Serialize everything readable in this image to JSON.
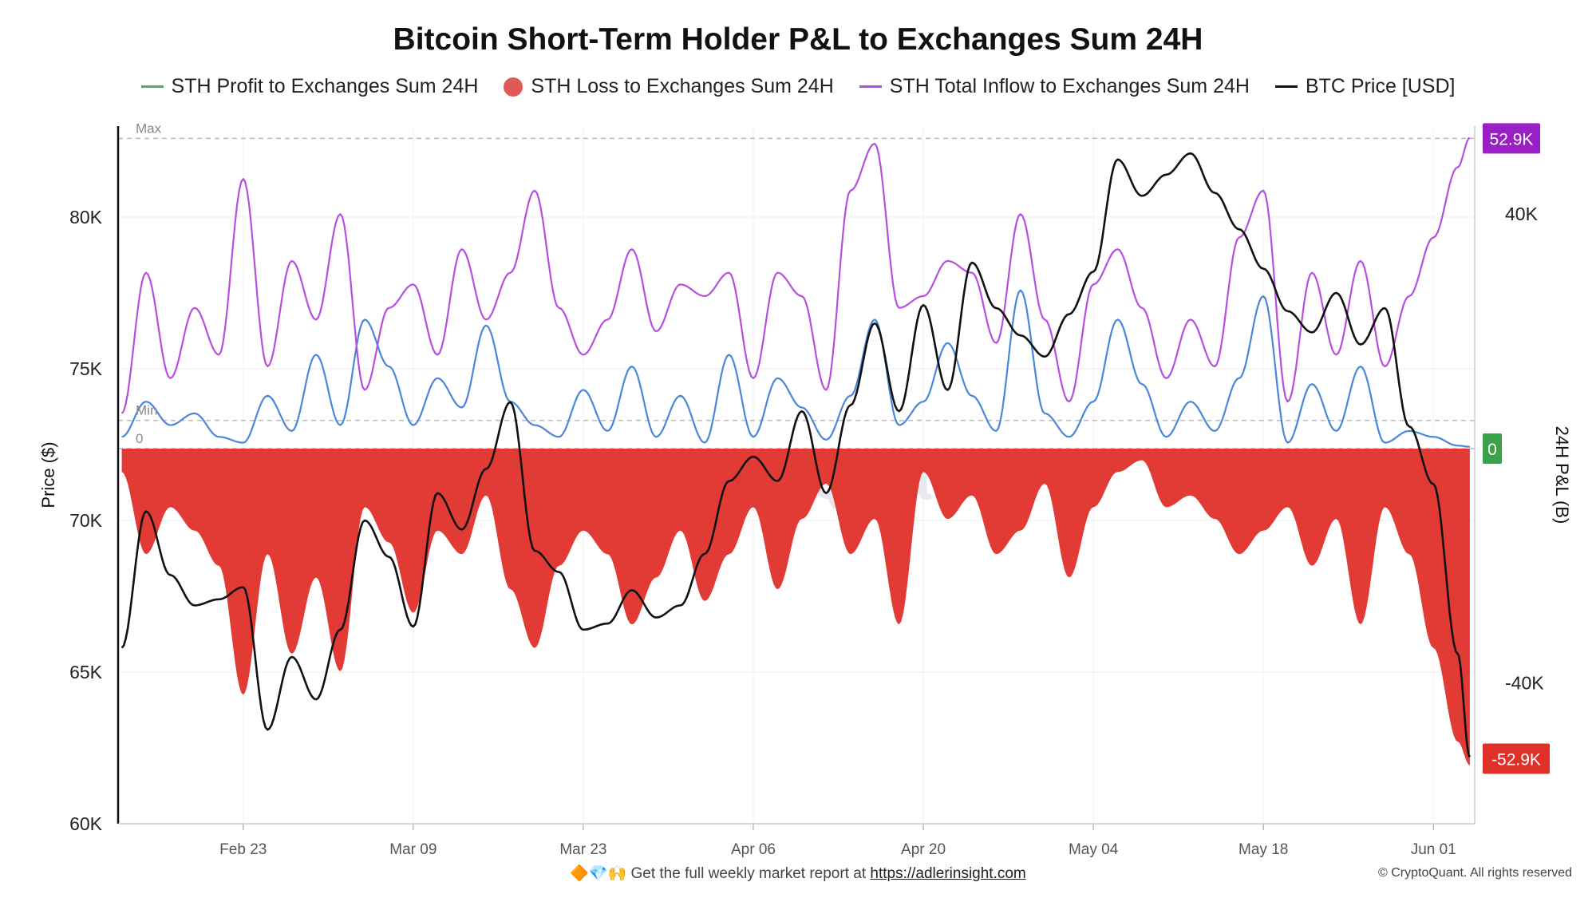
{
  "chart_data": {
    "type": "line",
    "title": "Bitcoin Short-Term Holder P&L to Exchanges Sum 24H",
    "ylabel": "Price ($)",
    "y2label": "24H P&L (B)",
    "ylim": [
      60000,
      83000
    ],
    "y2lim": [
      -64000,
      55000
    ],
    "y_ticks": [
      "60K",
      "65K",
      "70K",
      "75K",
      "80K"
    ],
    "y_tick_values": [
      60000,
      65000,
      70000,
      75000,
      80000
    ],
    "y2_ticks": [
      "-40K",
      "40K"
    ],
    "y2_tick_values": [
      -40000,
      40000
    ],
    "x_ticks": [
      "Feb 23",
      "Mar 09",
      "Mar 23",
      "Apr 06",
      "Apr 20",
      "May 04",
      "May 18",
      "Jun 01"
    ],
    "x_tick_days": [
      0,
      14,
      28,
      42,
      56,
      70,
      84,
      98
    ],
    "x_range_days": [
      -10.3,
      101.4
    ],
    "reference_lines": [
      {
        "label": "Max",
        "value": 52900
      },
      {
        "label": "Min",
        "value": 4800
      },
      {
        "label": "0",
        "value": 0
      }
    ],
    "value_badges": [
      {
        "label": "52.9K",
        "value": 52900,
        "color": "#9a1fc4"
      },
      {
        "label": "0",
        "value": 0,
        "color": "#3aa34a"
      },
      {
        "label": "-52.9K",
        "value": -52900,
        "color": "#e0302a"
      }
    ],
    "grid": true,
    "legend_position": "top-center",
    "x_unit": "days from Feb 23",
    "series": [
      {
        "name": "STH Profit to Exchanges Sum 24H",
        "color": "#4caf50",
        "axis": "right",
        "x": [
          -10,
          -8,
          -6,
          -4,
          -2,
          0,
          2,
          4,
          6,
          8,
          10,
          12,
          14,
          16,
          18,
          20,
          22,
          24,
          26,
          28,
          30,
          32,
          34,
          36,
          38,
          40,
          42,
          44,
          46,
          48,
          50,
          52,
          54,
          56,
          58,
          60,
          62,
          64,
          66,
          68,
          70,
          72,
          74,
          76,
          78,
          80,
          82,
          84,
          86,
          88,
          90,
          92,
          94,
          96,
          98,
          100,
          101
        ],
        "values": [
          2000,
          8000,
          4000,
          6000,
          2000,
          1000,
          9000,
          3000,
          16000,
          4000,
          22000,
          14000,
          4000,
          12000,
          7000,
          21000,
          8000,
          4000,
          2000,
          10000,
          3000,
          14000,
          2000,
          9000,
          1000,
          16000,
          2000,
          12000,
          7000,
          1500,
          9000,
          22000,
          4000,
          8000,
          18000,
          9000,
          3000,
          27000,
          6000,
          2000,
          8000,
          22000,
          11000,
          2000,
          8000,
          3000,
          12000,
          26000,
          1000,
          11000,
          3000,
          14000,
          1000,
          3000,
          2000,
          500,
          300
        ]
      },
      {
        "name": "STH Loss to Exchanges Sum 24H",
        "color": "#e0302a",
        "axis": "right",
        "x": [
          -10,
          -8,
          -6,
          -4,
          -2,
          0,
          2,
          4,
          6,
          8,
          10,
          12,
          14,
          16,
          18,
          20,
          22,
          24,
          26,
          28,
          30,
          32,
          34,
          36,
          38,
          40,
          42,
          44,
          46,
          48,
          50,
          52,
          54,
          56,
          58,
          60,
          62,
          64,
          66,
          68,
          70,
          72,
          74,
          76,
          78,
          80,
          82,
          84,
          86,
          88,
          90,
          92,
          94,
          96,
          98,
          100,
          101
        ],
        "values": [
          -4000,
          -18000,
          -10000,
          -14000,
          -20000,
          -42000,
          -18000,
          -35000,
          -22000,
          -38000,
          -10000,
          -16000,
          -28000,
          -14000,
          -18000,
          -8000,
          -24000,
          -34000,
          -20000,
          -14000,
          -18000,
          -30000,
          -22000,
          -14000,
          -26000,
          -18000,
          -10000,
          -24000,
          -12000,
          -6000,
          -18000,
          -12000,
          -30000,
          -4000,
          -12000,
          -8000,
          -18000,
          -14000,
          -6000,
          -22000,
          -10000,
          -4000,
          -2000,
          -10000,
          -8000,
          -12000,
          -18000,
          -14000,
          -10000,
          -20000,
          -12000,
          -30000,
          -10000,
          -18000,
          -34000,
          -50000,
          -54000
        ]
      },
      {
        "name": "STH Total Inflow to Exchanges Sum 24H",
        "color": "#b84ee0",
        "axis": "right",
        "x": [
          -10,
          -8,
          -6,
          -4,
          -2,
          0,
          2,
          4,
          6,
          8,
          10,
          12,
          14,
          16,
          18,
          20,
          22,
          24,
          26,
          28,
          30,
          32,
          34,
          36,
          38,
          40,
          42,
          44,
          46,
          48,
          50,
          52,
          54,
          56,
          58,
          60,
          62,
          64,
          66,
          68,
          70,
          72,
          74,
          76,
          78,
          80,
          82,
          84,
          86,
          88,
          90,
          92,
          94,
          96,
          98,
          100,
          101
        ],
        "values": [
          6000,
          30000,
          12000,
          24000,
          16000,
          46000,
          14000,
          32000,
          22000,
          40000,
          10000,
          24000,
          28000,
          16000,
          34000,
          22000,
          30000,
          44000,
          24000,
          16000,
          22000,
          34000,
          20000,
          28000,
          26000,
          30000,
          12000,
          30000,
          26000,
          10000,
          44000,
          52000,
          24000,
          26000,
          32000,
          30000,
          18000,
          40000,
          22000,
          8000,
          28000,
          34000,
          24000,
          12000,
          22000,
          14000,
          36000,
          44000,
          8000,
          30000,
          16000,
          32000,
          14000,
          26000,
          36000,
          48000,
          53000
        ]
      },
      {
        "name": "BTC Price [USD]",
        "color": "#111111",
        "axis": "left",
        "x": [
          -10,
          -8,
          -6,
          -4,
          -2,
          0,
          2,
          4,
          6,
          8,
          10,
          12,
          14,
          16,
          18,
          20,
          22,
          24,
          26,
          28,
          30,
          32,
          34,
          36,
          38,
          40,
          42,
          44,
          46,
          48,
          50,
          52,
          54,
          56,
          58,
          60,
          62,
          64,
          66,
          68,
          70,
          72,
          74,
          76,
          78,
          80,
          82,
          84,
          86,
          88,
          90,
          92,
          94,
          96,
          98,
          100,
          101
        ],
        "values": [
          65800,
          70300,
          68200,
          67200,
          67400,
          67800,
          63100,
          65500,
          64100,
          66400,
          70000,
          68800,
          66500,
          70900,
          69700,
          71700,
          73900,
          69000,
          68300,
          66400,
          66600,
          67700,
          66800,
          67200,
          68900,
          71300,
          72100,
          71300,
          73600,
          70900,
          73800,
          76500,
          73600,
          77100,
          74300,
          78500,
          77000,
          76100,
          75400,
          76800,
          78200,
          81900,
          80700,
          81400,
          82100,
          80800,
          79600,
          78300,
          76900,
          76200,
          77500,
          75800,
          77000,
          73100,
          71200,
          65600,
          62200
        ]
      }
    ]
  },
  "footer": {
    "note_prefix": "Get the full weekly market report at",
    "link": "https://adlerinsight.com",
    "emoji": "🔶💎🙌",
    "copyright": "© CryptoQuant. All rights reserved"
  },
  "watermark": "CryptoQuant"
}
